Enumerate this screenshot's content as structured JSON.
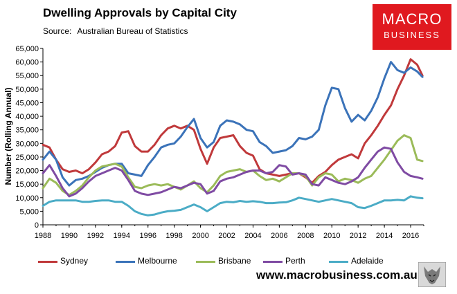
{
  "title": "Dwelling Approvals by Capital City",
  "source_label": "Source:",
  "source_text": "Australian Bureau of Statistics",
  "logo": {
    "line1": "MACRO",
    "line2": "BUSINESS"
  },
  "url": "www.macrobusiness.com.au",
  "chart_data": {
    "type": "line",
    "title": "Dwelling Approvals by Capital City",
    "xlabel": "",
    "ylabel": "Number (Rolling Annual)",
    "xlim": [
      1988,
      2017
    ],
    "ylim": [
      0,
      65000
    ],
    "x_ticks": [
      "1988",
      "1990",
      "1992",
      "1994",
      "1996",
      "1998",
      "2000",
      "2002",
      "2004",
      "2006",
      "2008",
      "2010",
      "2012",
      "2014",
      "2016"
    ],
    "y_ticks": [
      "0",
      "5,000",
      "10,000",
      "15,000",
      "20,000",
      "25,000",
      "30,000",
      "35,000",
      "40,000",
      "45,000",
      "50,000",
      "55,000",
      "60,000",
      "65,000"
    ],
    "grid": false,
    "legend_position": "bottom",
    "series": [
      {
        "name": "Sydney",
        "color": "#c0393b",
        "x": [
          1988,
          1988.5,
          1989,
          1989.5,
          1990,
          1990.5,
          1991,
          1991.5,
          1992,
          1992.5,
          1993,
          1993.5,
          1994,
          1994.5,
          1995,
          1995.5,
          1996,
          1996.5,
          1997,
          1997.5,
          1998,
          1998.5,
          1999,
          1999.5,
          2000,
          2000.5,
          2001,
          2001.5,
          2002,
          2002.5,
          2003,
          2003.5,
          2004,
          2004.5,
          2005,
          2005.5,
          2006,
          2006.5,
          2007,
          2007.5,
          2008,
          2008.5,
          2009,
          2009.5,
          2010,
          2010.5,
          2011,
          2011.5,
          2012,
          2012.5,
          2013,
          2013.5,
          2014,
          2014.5,
          2015,
          2015.5,
          2016,
          2016.5,
          2016.9
        ],
        "values": [
          29500,
          28500,
          24000,
          20500,
          19500,
          20000,
          19000,
          20500,
          23000,
          26000,
          27000,
          29000,
          34000,
          34500,
          29000,
          27000,
          27000,
          29500,
          33000,
          35500,
          36500,
          35500,
          36500,
          35000,
          28000,
          22500,
          28500,
          32000,
          32500,
          33000,
          29000,
          26500,
          25500,
          20500,
          19000,
          18500,
          18000,
          18500,
          19000,
          19000,
          17500,
          15500,
          18000,
          19500,
          22000,
          24000,
          25000,
          26000,
          24500,
          30000,
          33000,
          36500,
          40500,
          44000,
          50000,
          55000,
          61000,
          59000,
          55000
        ]
      },
      {
        "name": "Melbourne",
        "color": "#3b73b9",
        "x": [
          1988,
          1988.5,
          1989,
          1989.5,
          1990,
          1990.5,
          1991,
          1991.5,
          1992,
          1992.5,
          1993,
          1993.5,
          1994,
          1994.5,
          1995,
          1995.5,
          1996,
          1996.5,
          1997,
          1997.5,
          1998,
          1998.5,
          1999,
          1999.5,
          2000,
          2000.5,
          2001,
          2001.5,
          2002,
          2002.5,
          2003,
          2003.5,
          2004,
          2004.5,
          2005,
          2005.5,
          2006,
          2006.5,
          2007,
          2007.5,
          2008,
          2008.5,
          2009,
          2009.5,
          2010,
          2010.5,
          2011,
          2011.5,
          2012,
          2012.5,
          2013,
          2013.5,
          2014,
          2014.5,
          2015,
          2015.5,
          2016,
          2016.5,
          2016.9
        ],
        "values": [
          24000,
          27000,
          24000,
          17500,
          14500,
          16500,
          17000,
          18000,
          19500,
          21000,
          22000,
          22500,
          22500,
          19000,
          18500,
          18000,
          22000,
          25000,
          28500,
          29500,
          30000,
          32500,
          36000,
          39000,
          32000,
          28500,
          30500,
          36500,
          38500,
          38000,
          37000,
          35000,
          34500,
          30500,
          29000,
          26500,
          27000,
          27500,
          29000,
          32000,
          31500,
          32500,
          35000,
          44000,
          50500,
          50000,
          43000,
          38000,
          40500,
          38500,
          42000,
          47000,
          54000,
          60000,
          57000,
          56000,
          58000,
          56500,
          54500
        ]
      },
      {
        "name": "Brisbane",
        "color": "#9bbb59",
        "x": [
          1988,
          1988.5,
          1989,
          1989.5,
          1990,
          1990.5,
          1991,
          1991.5,
          1992,
          1992.5,
          1993,
          1993.5,
          1994,
          1994.5,
          1995,
          1995.5,
          1996,
          1996.5,
          1997,
          1997.5,
          1998,
          1998.5,
          1999,
          1999.5,
          2000,
          2000.5,
          2001,
          2001.5,
          2002,
          2002.5,
          2003,
          2003.5,
          2004,
          2004.5,
          2005,
          2005.5,
          2006,
          2006.5,
          2007,
          2007.5,
          2008,
          2008.5,
          2009,
          2009.5,
          2010,
          2010.5,
          2011,
          2011.5,
          2012,
          2012.5,
          2013,
          2013.5,
          2014,
          2014.5,
          2015,
          2015.5,
          2016,
          2016.5,
          2016.9
        ],
        "values": [
          13500,
          17000,
          15500,
          12500,
          11000,
          12500,
          14500,
          17500,
          20000,
          21500,
          22000,
          22500,
          21500,
          17500,
          14000,
          13500,
          14500,
          15000,
          14500,
          15000,
          14000,
          13000,
          14500,
          16000,
          13500,
          12000,
          14500,
          18000,
          19500,
          20000,
          20500,
          19500,
          20000,
          18000,
          16500,
          17000,
          16000,
          17500,
          19000,
          19000,
          18000,
          14500,
          17500,
          19000,
          18500,
          16000,
          17000,
          16500,
          15500,
          17000,
          18000,
          21000,
          24000,
          27500,
          31000,
          33000,
          32000,
          24000,
          23500
        ]
      },
      {
        "name": "Perth",
        "color": "#7f4ba3",
        "x": [
          1988,
          1988.5,
          1989,
          1989.5,
          1990,
          1990.5,
          1991,
          1991.5,
          1992,
          1992.5,
          1993,
          1993.5,
          1994,
          1994.5,
          1995,
          1995.5,
          1996,
          1996.5,
          1997,
          1997.5,
          1998,
          1998.5,
          1999,
          1999.5,
          2000,
          2000.5,
          2001,
          2001.5,
          2002,
          2002.5,
          2003,
          2003.5,
          2004,
          2004.5,
          2005,
          2005.5,
          2006,
          2006.5,
          2007,
          2007.5,
          2008,
          2008.5,
          2009,
          2009.5,
          2010,
          2010.5,
          2011,
          2011.5,
          2012,
          2012.5,
          2013,
          2013.5,
          2014,
          2014.5,
          2015,
          2015.5,
          2016,
          2016.5,
          2016.9
        ],
        "values": [
          19000,
          22000,
          18000,
          13500,
          10500,
          11500,
          13500,
          16000,
          18000,
          19000,
          20000,
          21000,
          20000,
          16500,
          12500,
          11500,
          11000,
          11500,
          12000,
          13000,
          14000,
          13500,
          14500,
          15500,
          15000,
          11500,
          12500,
          16000,
          17000,
          17500,
          18500,
          19500,
          20000,
          20000,
          19000,
          19500,
          22000,
          21500,
          18500,
          19000,
          18500,
          15000,
          14500,
          17500,
          16500,
          15500,
          15000,
          16000,
          17500,
          21000,
          24000,
          27000,
          28500,
          28000,
          23000,
          19500,
          18000,
          17500,
          17000
        ]
      },
      {
        "name": "Adelaide",
        "color": "#4bacc6",
        "x": [
          1988,
          1988.5,
          1989,
          1989.5,
          1990,
          1990.5,
          1991,
          1991.5,
          1992,
          1992.5,
          1993,
          1993.5,
          1994,
          1994.5,
          1995,
          1995.5,
          1996,
          1996.5,
          1997,
          1997.5,
          1998,
          1998.5,
          1999,
          1999.5,
          2000,
          2000.5,
          2001,
          2001.5,
          2002,
          2002.5,
          2003,
          2003.5,
          2004,
          2004.5,
          2005,
          2005.5,
          2006,
          2006.5,
          2007,
          2007.5,
          2008,
          2008.5,
          2009,
          2009.5,
          2010,
          2010.5,
          2011,
          2011.5,
          2012,
          2012.5,
          2013,
          2013.5,
          2014,
          2014.5,
          2015,
          2015.5,
          2016,
          2016.5,
          2016.9
        ],
        "values": [
          7000,
          8500,
          9000,
          9000,
          9000,
          9000,
          8500,
          8500,
          8800,
          9000,
          9000,
          8500,
          8500,
          7000,
          5000,
          4000,
          3500,
          3800,
          4500,
          5000,
          5200,
          5500,
          6500,
          7500,
          6500,
          5000,
          6500,
          8000,
          8500,
          8300,
          8800,
          8500,
          8700,
          8500,
          8000,
          8000,
          8200,
          8300,
          9000,
          10000,
          9500,
          9000,
          8500,
          9000,
          9500,
          9000,
          8500,
          8000,
          6500,
          6200,
          7000,
          8000,
          9000,
          9000,
          9200,
          9000,
          10500,
          10000,
          9800
        ]
      }
    ]
  }
}
